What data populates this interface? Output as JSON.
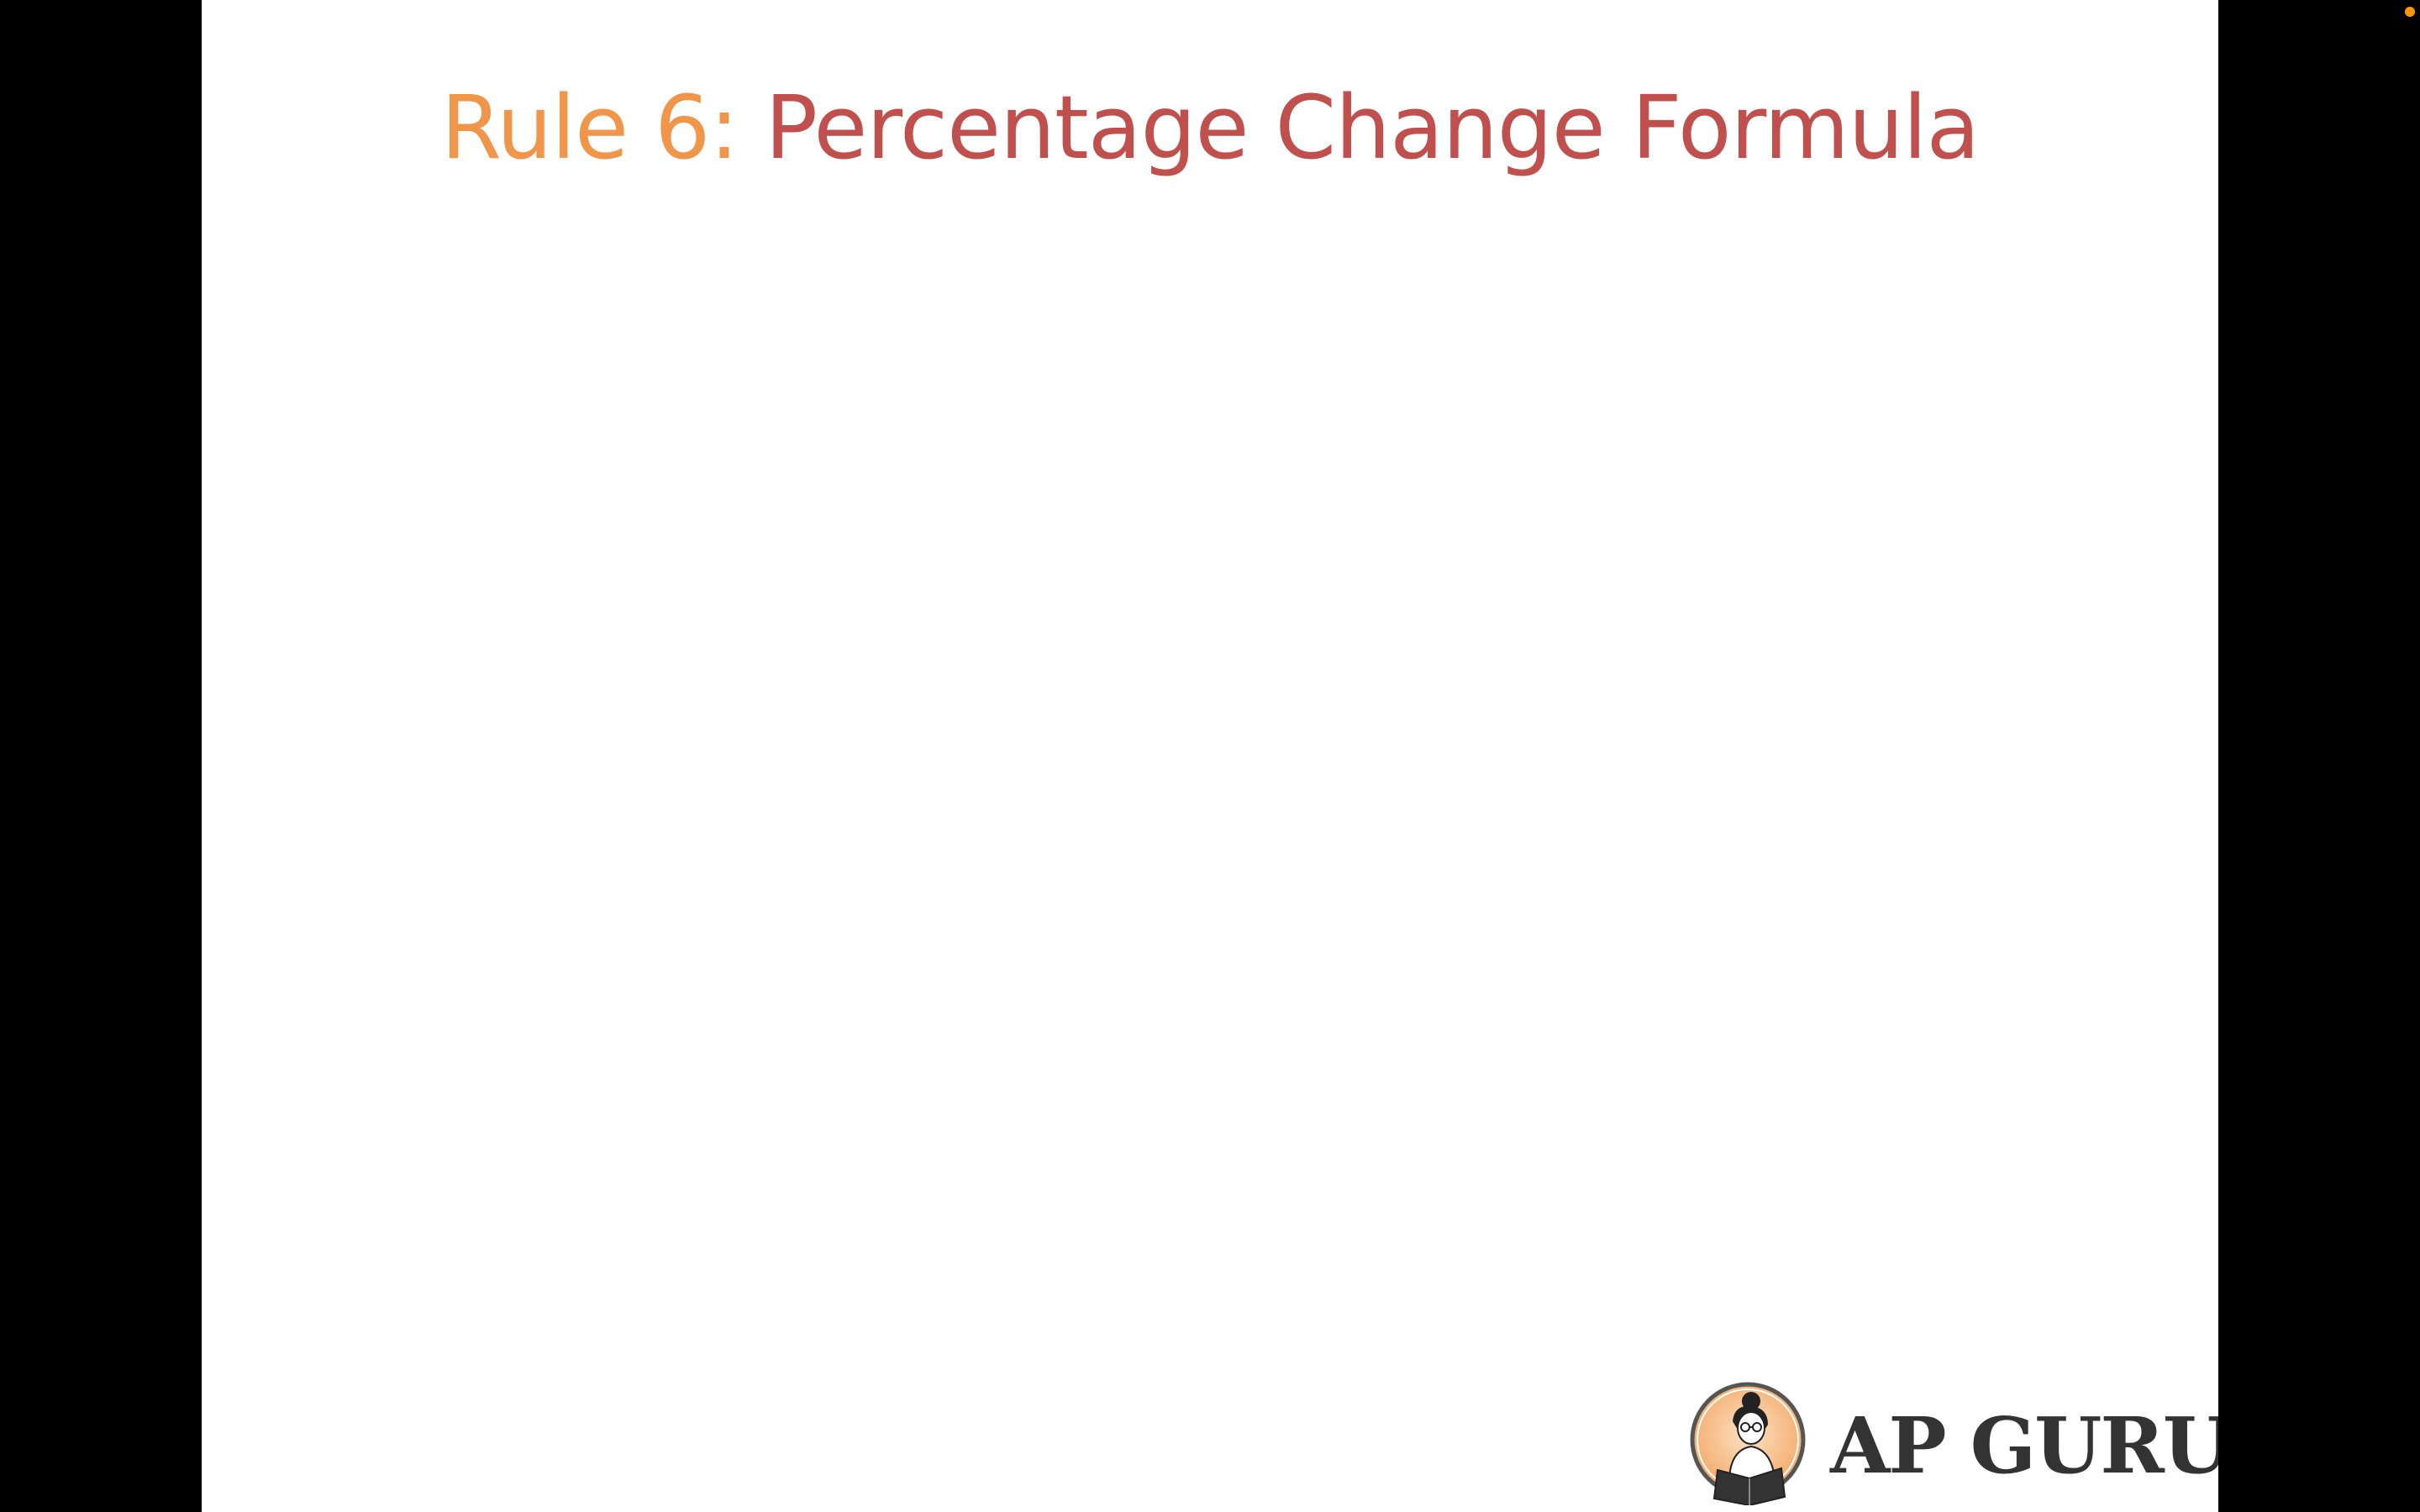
{
  "slide": {
    "title_prefix": "Rule 6: ",
    "title_main": "Percentage Change Formula"
  },
  "logo": {
    "text": "AP GURU",
    "icon": "reading-person-logo-icon"
  },
  "status_indicator": {
    "icon": "orange-dot-icon",
    "color": "#ff9500"
  },
  "colors": {
    "title_prefix": "#f0964a",
    "title_main": "#c0504d",
    "logo_text": "#333333",
    "letterbox": "#000000",
    "slide_background": "#ffffff"
  }
}
